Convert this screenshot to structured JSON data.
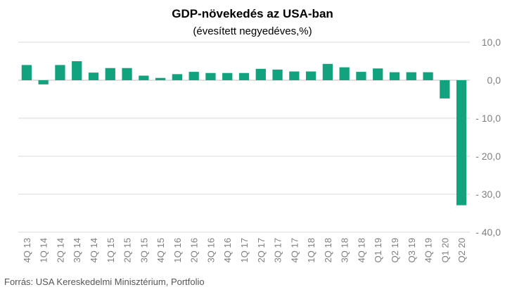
{
  "chart_data": {
    "type": "bar",
    "title": "GDP-növekedés az USA-ban",
    "subtitle": "(évesített negyedéves,%)",
    "categories": [
      "4Q 13",
      "1Q 14",
      "2Q 14",
      "3Q 14",
      "4Q 14",
      "1Q 15",
      "2Q 15",
      "3Q 15",
      "4Q 15",
      "1Q 16",
      "2Q 16",
      "3Q 16",
      "4Q 16",
      "1Q 17",
      "2Q 17",
      "3Q 17",
      "4Q 17",
      "1Q 18",
      "2Q 18",
      "3Q 18",
      "4Q 18",
      "Q1 19",
      "Q2 19",
      "Q3 19",
      "4Q 19",
      "Q1 20",
      "Q2 20"
    ],
    "series": [
      {
        "values": [
          4.0,
          -1.1,
          4.0,
          5.0,
          2.0,
          3.2,
          3.2,
          1.2,
          0.6,
          1.6,
          2.2,
          1.9,
          1.9,
          1.9,
          3.0,
          2.8,
          2.3,
          2.3,
          4.3,
          3.4,
          2.2,
          3.1,
          2.1,
          2.1,
          2.1,
          -4.8,
          -32.9
        ]
      }
    ],
    "ylim": [
      -40,
      10
    ],
    "yticks": [
      10,
      0,
      -10,
      -20,
      -30,
      -40
    ],
    "ytick_labels": [
      "10,0",
      "0,0",
      "- 10,0",
      "- 20,0",
      "- 30,0",
      "- 40,0"
    ],
    "y_axis_side": "right",
    "grid": true,
    "bar_color": "#12a27e",
    "grid_color": "#d9d9d9",
    "label_color": "#7f7f7f"
  },
  "source": "Forrás: USA Kereskedelmi Minisztérium, Portfolio"
}
